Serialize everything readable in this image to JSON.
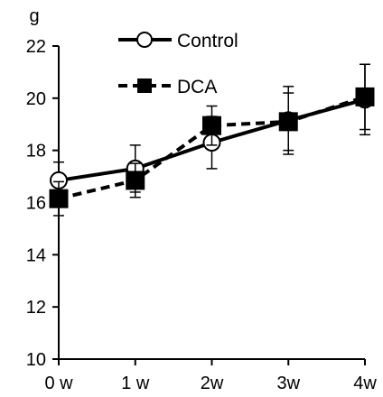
{
  "chart_data": {
    "type": "line",
    "title": "",
    "xlabel": "",
    "ylabel": "g",
    "categories": [
      "0 w",
      "1 w",
      "2w",
      "3w",
      "4w"
    ],
    "ylim": [
      10,
      22
    ],
    "yticks": [
      10,
      12,
      14,
      16,
      18,
      20,
      22
    ],
    "grid": false,
    "legend_position": "top",
    "series": [
      {
        "name": "Control",
        "style": "solid",
        "marker": "open-circle",
        "color": "#000000",
        "values": [
          16.85,
          17.3,
          18.3,
          19.15,
          19.95
        ],
        "error": [
          0.7,
          0.9,
          1.0,
          1.3,
          1.35
        ]
      },
      {
        "name": "DCA",
        "style": "dashed",
        "marker": "filled-square",
        "color": "#000000",
        "values": [
          16.15,
          16.85,
          18.95,
          19.1,
          20.05
        ],
        "error": [
          0.65,
          0.65,
          0.75,
          1.1,
          1.25
        ]
      }
    ]
  }
}
